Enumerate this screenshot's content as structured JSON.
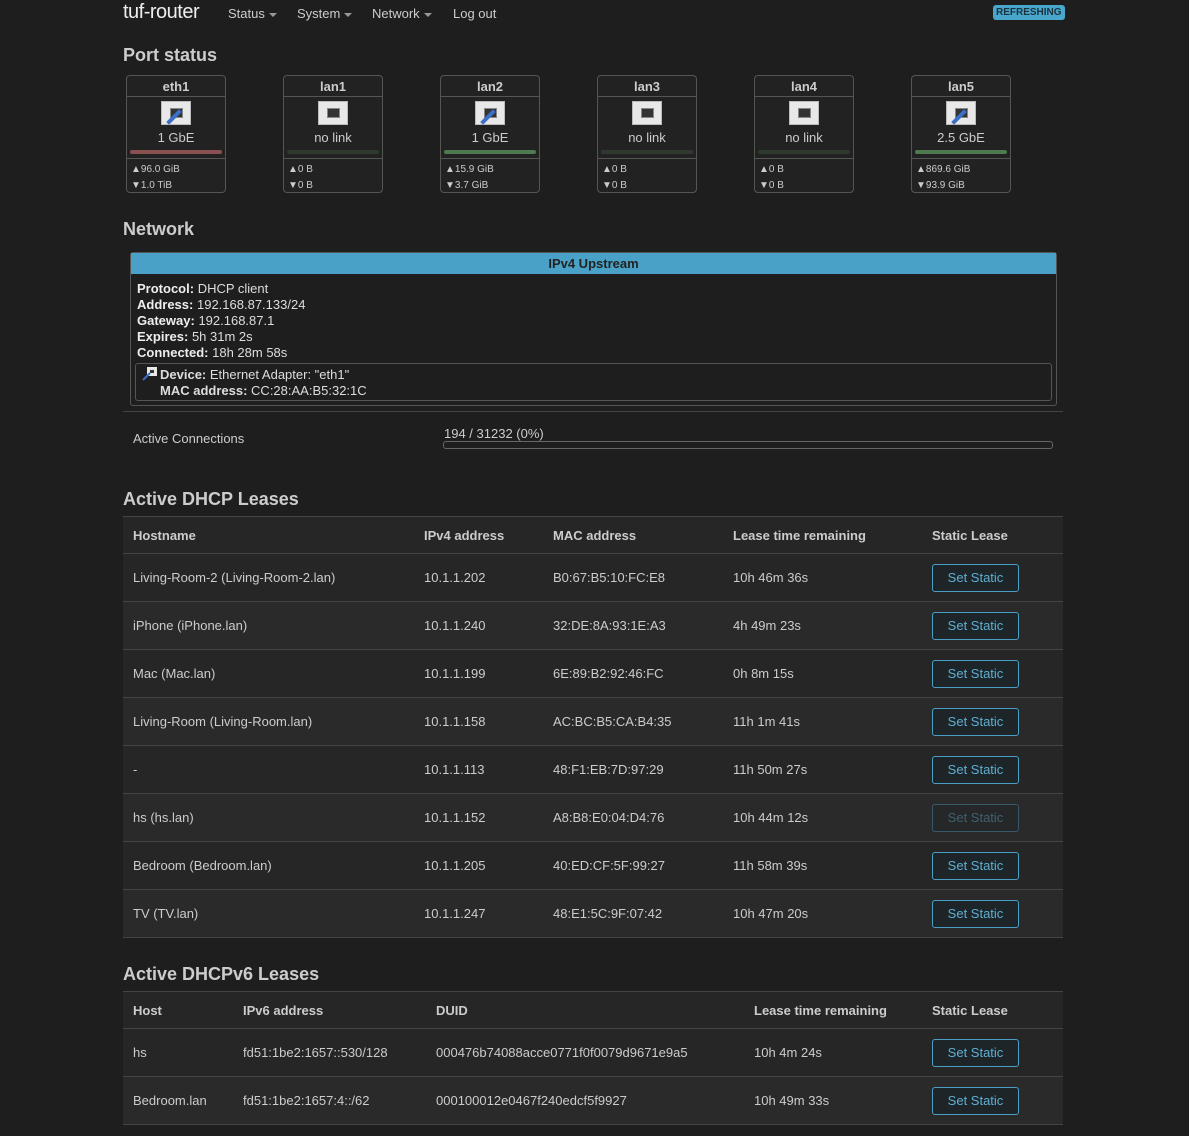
{
  "nav": {
    "brand": "tuf-router",
    "menus": [
      "Status",
      "System",
      "Network"
    ],
    "logout": "Log out",
    "badge": "REFRESHING"
  },
  "port_status": {
    "title": "Port status",
    "ports": [
      {
        "name": "eth1",
        "speed": "1 GbE",
        "linked": true,
        "bar_color": "#8a4f4f",
        "tx": "96.0 GiB",
        "rx": "1.0 TiB"
      },
      {
        "name": "lan1",
        "speed": "no link",
        "linked": false,
        "bar_color": "#2f3a2f",
        "tx": "0 B",
        "rx": "0 B"
      },
      {
        "name": "lan2",
        "speed": "1 GbE",
        "linked": true,
        "bar_color": "#4f7a4f",
        "tx": "15.9 GiB",
        "rx": "3.7 GiB"
      },
      {
        "name": "lan3",
        "speed": "no link",
        "linked": false,
        "bar_color": "#2f3a2f",
        "tx": "0 B",
        "rx": "0 B"
      },
      {
        "name": "lan4",
        "speed": "no link",
        "linked": false,
        "bar_color": "#2f3a2f",
        "tx": "0 B",
        "rx": "0 B"
      },
      {
        "name": "lan5",
        "speed": "2.5 GbE",
        "linked": true,
        "bar_color": "#4f7a4f",
        "tx": "869.6 GiB",
        "rx": "93.9 GiB"
      }
    ]
  },
  "network": {
    "title": "Network",
    "upstream_title": "IPv4 Upstream",
    "fields": [
      {
        "label": "Protocol:",
        "value": "DHCP client"
      },
      {
        "label": "Address:",
        "value": "192.168.87.133/24"
      },
      {
        "label": "Gateway:",
        "value": "192.168.87.1"
      },
      {
        "label": "Expires:",
        "value": "5h 31m 2s"
      },
      {
        "label": "Connected:",
        "value": "18h 28m 58s"
      }
    ],
    "device": {
      "label": "Device:",
      "value": "Ethernet Adapter: \"eth1\"",
      "mac_label": "MAC address:",
      "mac": "CC:28:AA:B5:32:1C"
    },
    "active_connections": {
      "label": "Active Connections",
      "value": "194 / 31232 (0%)",
      "percent": 0
    }
  },
  "dhcp": {
    "title": "Active DHCP Leases",
    "headers": [
      "Hostname",
      "IPv4 address",
      "MAC address",
      "Lease time remaining",
      "Static Lease"
    ],
    "rows": [
      {
        "host": "Living-Room-2 (Living-Room-2.lan)",
        "ip": "10.1.1.202",
        "mac": "B0:67:B5:10:FC:E8",
        "lease": "10h 46m 36s",
        "button": "Set Static",
        "disabled": false
      },
      {
        "host": "iPhone (iPhone.lan)",
        "ip": "10.1.1.240",
        "mac": "32:DE:8A:93:1E:A3",
        "lease": "4h 49m 23s",
        "button": "Set Static",
        "disabled": false
      },
      {
        "host": "Mac (Mac.lan)",
        "ip": "10.1.1.199",
        "mac": "6E:89:B2:92:46:FC",
        "lease": "0h 8m 15s",
        "button": "Set Static",
        "disabled": false
      },
      {
        "host": "Living-Room (Living-Room.lan)",
        "ip": "10.1.1.158",
        "mac": "AC:BC:B5:CA:B4:35",
        "lease": "11h 1m 41s",
        "button": "Set Static",
        "disabled": false
      },
      {
        "host": "-",
        "ip": "10.1.1.113",
        "mac": "48:F1:EB:7D:97:29",
        "lease": "11h 50m 27s",
        "button": "Set Static",
        "disabled": false
      },
      {
        "host": "hs (hs.lan)",
        "ip": "10.1.1.152",
        "mac": "A8:B8:E0:04:D4:76",
        "lease": "10h 44m 12s",
        "button": "Set Static",
        "disabled": true
      },
      {
        "host": "Bedroom (Bedroom.lan)",
        "ip": "10.1.1.205",
        "mac": "40:ED:CF:5F:99:27",
        "lease": "11h 58m 39s",
        "button": "Set Static",
        "disabled": false
      },
      {
        "host": "TV (TV.lan)",
        "ip": "10.1.1.247",
        "mac": "48:E1:5C:9F:07:42",
        "lease": "10h 47m 20s",
        "button": "Set Static",
        "disabled": false
      }
    ]
  },
  "dhcp6": {
    "title": "Active DHCPv6 Leases",
    "headers": [
      "Host",
      "IPv6 address",
      "DUID",
      "Lease time remaining",
      "Static Lease"
    ],
    "rows": [
      {
        "host": "hs",
        "ip": "fd51:1be2:1657::530/128",
        "duid": "000476b74088acce0771f0f0079d9671e9a5",
        "lease": "10h 4m 24s",
        "button": "Set Static"
      },
      {
        "host": "Bedroom.lan",
        "ip": "fd51:1be2:1657:4::/62",
        "duid": "000100012e0467f240edcf5f9927",
        "lease": "10h 49m 33s",
        "button": "Set Static"
      }
    ]
  }
}
